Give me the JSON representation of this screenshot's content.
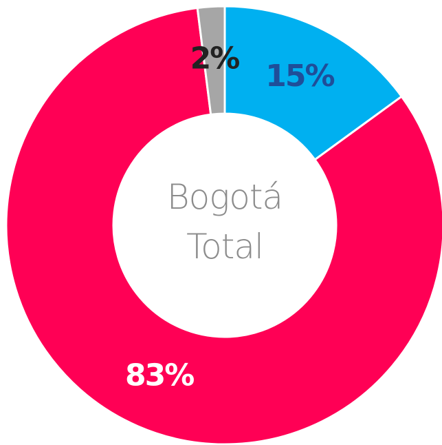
{
  "chart_data": {
    "type": "donut",
    "title": "Bogotá Total",
    "categories": [
      "Blue",
      "Pink",
      "Gray"
    ],
    "values": [
      15,
      83,
      2
    ],
    "value_labels": [
      "15%",
      "83%",
      "2%"
    ],
    "colors": [
      "#00b0f0",
      "#ff0055",
      "#a6a6a6"
    ],
    "label_colors": [
      "#1f4e99",
      "#ffffff",
      "#222222"
    ]
  }
}
